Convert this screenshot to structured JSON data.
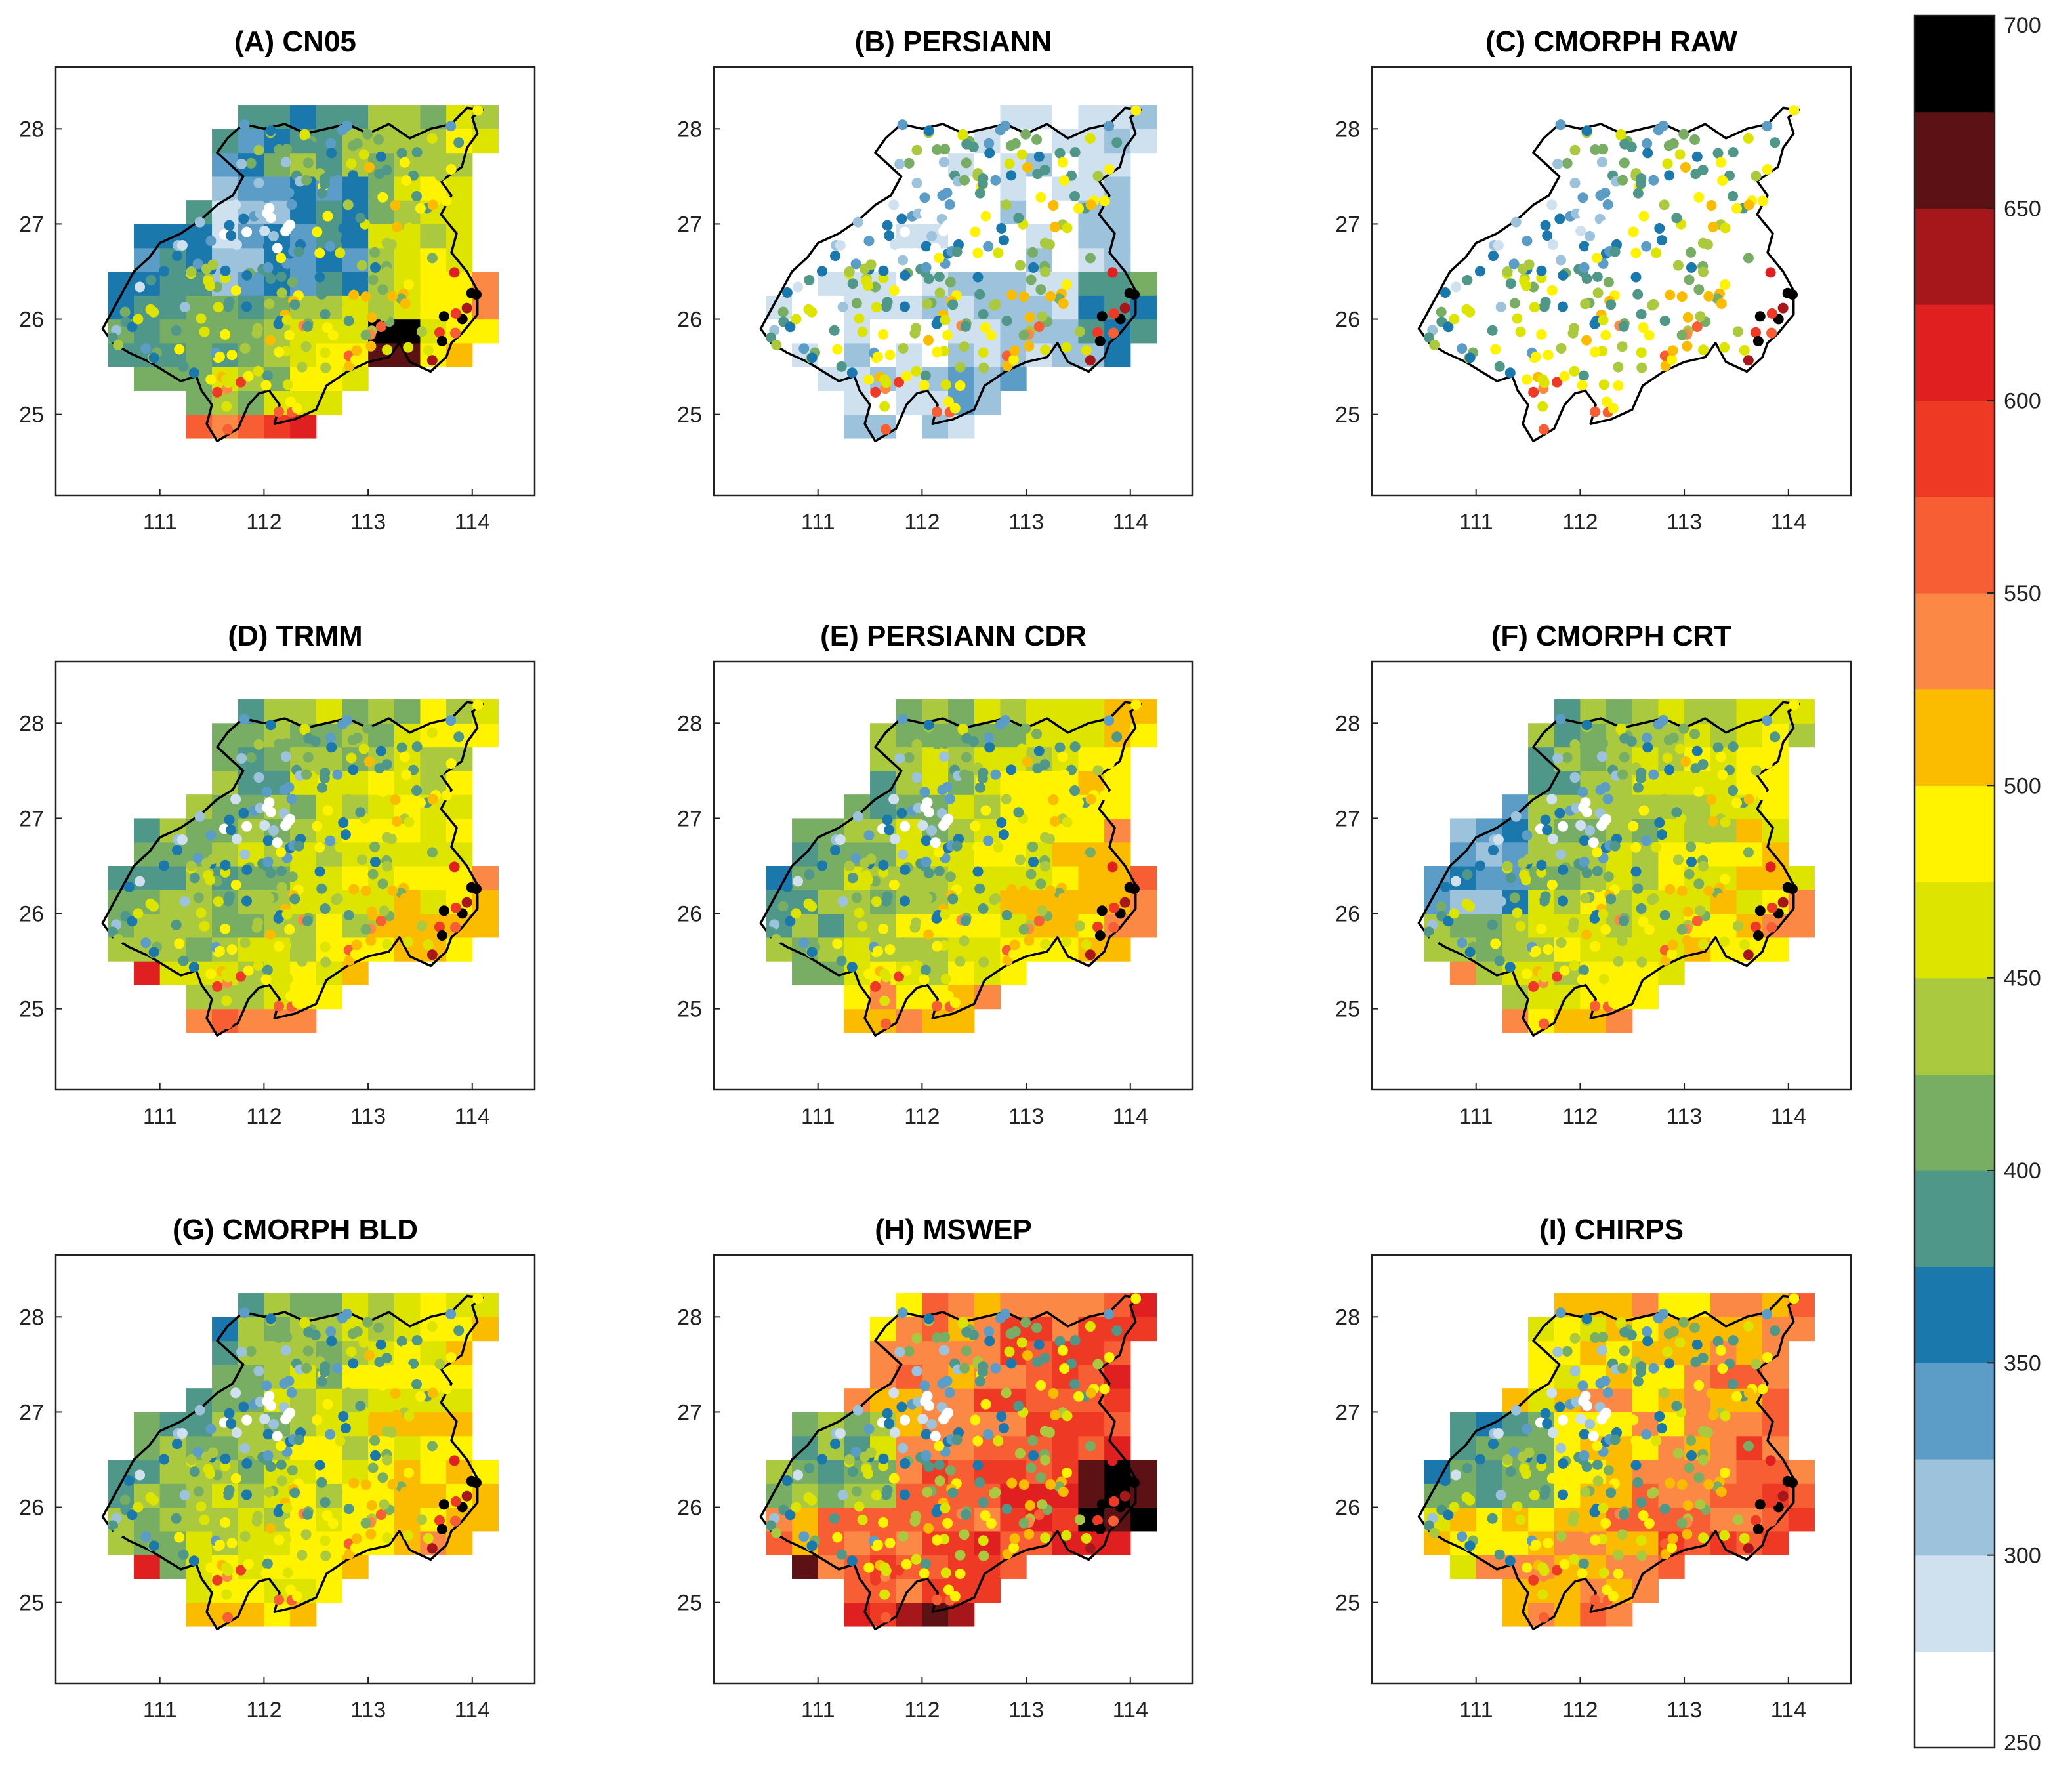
{
  "figure": {
    "type": "map-panels",
    "description_units": "mm",
    "colorbar": {
      "min": 250,
      "max": 700,
      "step": 25,
      "tick_labels": [
        "700",
        "650",
        "600",
        "550",
        "500",
        "450",
        "400",
        "350",
        "300",
        "250"
      ],
      "tick_values": [
        700,
        650,
        600,
        550,
        500,
        450,
        400,
        350,
        300,
        250
      ],
      "colors": [
        "#ffffff",
        "#cfe1ee",
        "#9cc2dc",
        "#5c9dc8",
        "#1a78ad",
        "#4e9789",
        "#78ae64",
        "#abc93e",
        "#dde400",
        "#fff300",
        "#fbbc00",
        "#fb8945",
        "#f75e34",
        "#ee3a25",
        "#e02020",
        "#a5171a",
        "#5c1214",
        "#000000"
      ]
    },
    "x_ticks": [
      "111",
      "112",
      "113",
      "114"
    ],
    "y_ticks": [
      "28",
      "27",
      "26",
      "25"
    ],
    "panels": [
      {
        "id": "A",
        "title": "(A) CN05",
        "variant": "cn05"
      },
      {
        "id": "B",
        "title": "(B) PERSIANN",
        "variant": "persiann"
      },
      {
        "id": "C",
        "title": "(C) CMORPH RAW",
        "variant": "cmorph_raw"
      },
      {
        "id": "D",
        "title": "(D) TRMM",
        "variant": "trmm"
      },
      {
        "id": "E",
        "title": "(E) PERSIANN CDR",
        "variant": "persiann_cdr"
      },
      {
        "id": "F",
        "title": "(F) CMORPH CRT",
        "variant": "cmorph_crt"
      },
      {
        "id": "G",
        "title": "(G) CMORPH BLD",
        "variant": "cmorph_bld"
      },
      {
        "id": "H",
        "title": "(H) MSWEP",
        "variant": "mswep"
      },
      {
        "id": "I",
        "title": "(I) CHIRPS",
        "variant": "chirps"
      }
    ]
  }
}
